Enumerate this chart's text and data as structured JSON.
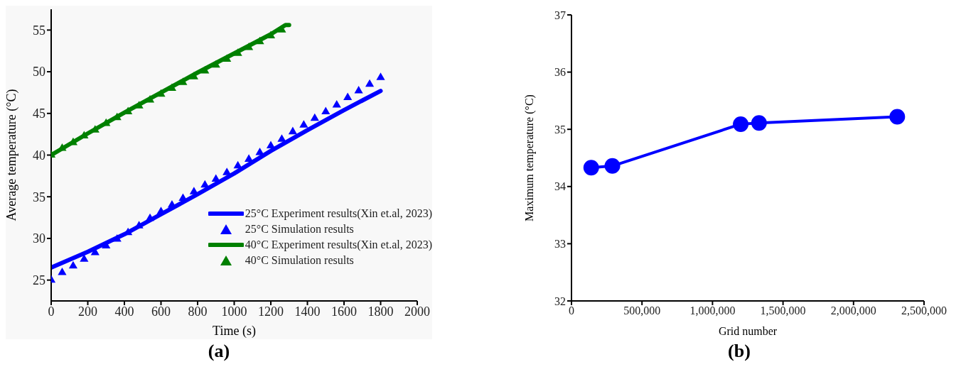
{
  "chart_data": [
    {
      "type": "line",
      "xlabel": "Time (s)",
      "ylabel": "Average temperature (°C)",
      "xlim": [
        0,
        2000
      ],
      "xticks": [
        0,
        200,
        400,
        600,
        800,
        1000,
        1200,
        1400,
        1600,
        1800,
        2000
      ],
      "ylim": [
        22.5,
        57.5
      ],
      "yticks": [
        25,
        30,
        35,
        40,
        45,
        50,
        55
      ],
      "legend": "bottom right",
      "annotations": [
        "(a)"
      ],
      "series": [
        {
          "name": "25°C Experiment results(Xin et.al, 2023)",
          "type": "line",
          "marker": "none",
          "color": "#0000ff",
          "x": [
            0,
            200,
            400,
            600,
            800,
            1000,
            1200,
            1400,
            1600,
            1800
          ],
          "values": [
            26.5,
            28.4,
            30.5,
            32.9,
            35.3,
            37.8,
            40.5,
            43.0,
            45.4,
            47.7
          ]
        },
        {
          "name": "25°C Simulation results",
          "type": "scatter",
          "marker": "triangle",
          "color": "#0000ff",
          "x": [
            0,
            60,
            120,
            180,
            240,
            300,
            360,
            420,
            480,
            540,
            600,
            660,
            720,
            780,
            840,
            900,
            960,
            1020,
            1080,
            1140,
            1200,
            1260,
            1320,
            1380,
            1440,
            1500,
            1560,
            1620,
            1680,
            1740,
            1800
          ],
          "values": [
            25,
            25.9,
            26.7,
            27.5,
            28.3,
            29.1,
            29.9,
            30.7,
            31.5,
            32.4,
            33.2,
            34.0,
            34.8,
            35.6,
            36.4,
            37.1,
            37.9,
            38.7,
            39.5,
            40.3,
            41.1,
            41.9,
            42.8,
            43.6,
            44.4,
            45.2,
            46.0,
            46.9,
            47.7,
            48.5,
            49.3
          ]
        },
        {
          "name": "40°C Experiment results(Xin et.al, 2023)",
          "type": "line",
          "marker": "none",
          "color": "#008000",
          "x": [
            0,
            200,
            400,
            600,
            800,
            1000,
            1200,
            1280,
            1300
          ],
          "values": [
            40,
            42.6,
            45.1,
            47.5,
            49.9,
            52.2,
            54.5,
            55.6,
            55.6
          ]
        },
        {
          "name": "40°C Simulation results",
          "type": "scatter",
          "marker": "triangle",
          "color": "#008000",
          "x": [
            0,
            60,
            120,
            180,
            240,
            300,
            360,
            420,
            480,
            540,
            600,
            660,
            720,
            780,
            840,
            900,
            960,
            1020,
            1080,
            1140,
            1200,
            1260
          ],
          "values": [
            40,
            40.8,
            41.5,
            42.3,
            43.0,
            43.8,
            44.5,
            45.2,
            45.9,
            46.6,
            47.3,
            48.0,
            48.7,
            49.4,
            50.1,
            50.8,
            51.5,
            52.2,
            52.9,
            53.6,
            54.3,
            55.0
          ]
        }
      ]
    },
    {
      "type": "line",
      "xlabel": "Grid number",
      "ylabel": "Maximum temperature (°C)",
      "xlim": [
        0,
        2500000
      ],
      "xticks": [
        0,
        {
          "value": 500000,
          "label": "500,000"
        },
        {
          "value": 1000000,
          "label": "1,000,000"
        },
        {
          "value": 1500000,
          "label": "1,500,000"
        },
        {
          "value": 2000000,
          "label": "2,000,000"
        },
        {
          "value": 2500000,
          "label": "2,500,000"
        }
      ],
      "ylim": [
        32,
        37
      ],
      "yticks": [
        32,
        33,
        34,
        35,
        36,
        37
      ],
      "marker": "circle",
      "annotations": [
        "(b)"
      ],
      "color": "#0000ff",
      "x": [
        140000,
        290000,
        1200000,
        1330000,
        2310000
      ],
      "values": [
        34.33,
        34.36,
        35.09,
        35.11,
        35.22
      ]
    }
  ]
}
